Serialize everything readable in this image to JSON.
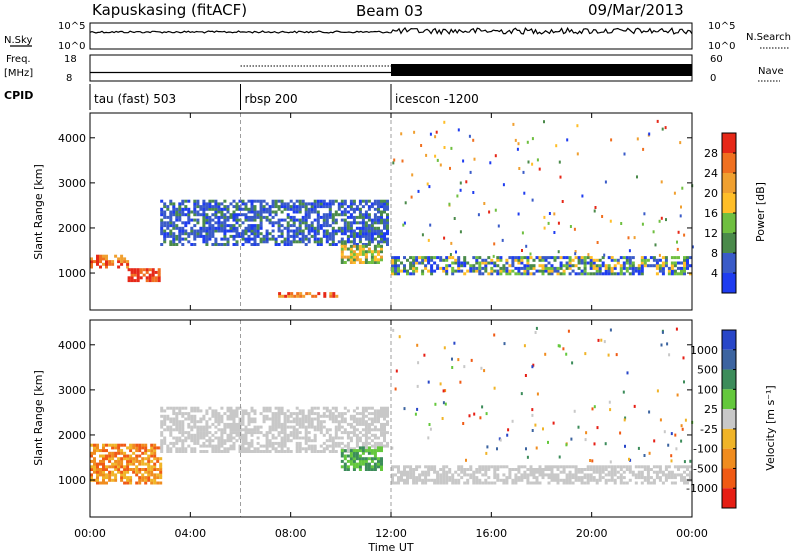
{
  "header": {
    "site_title": "Kapuskasing (fitACF)",
    "beam": "Beam 03",
    "date": "09/Mar/2013"
  },
  "top_panels": {
    "nsky_label": "N.Sky",
    "nsky_ticks": [
      "10^5",
      "10^0"
    ],
    "nsearch_label": "N.Search",
    "nsearch_ticks": [
      "10^5",
      "10^0"
    ],
    "freq_label_1": "Freq.",
    "freq_label_2": "[MHz]",
    "freq_ticks": [
      "18",
      "8"
    ],
    "nave_label": "Nave",
    "nave_ticks": [
      "60",
      "0"
    ],
    "cpid_label": "CPID",
    "cpid_segments": [
      {
        "label": "tau (fast) 503",
        "start": 0
      },
      {
        "label": "rbsp 200",
        "start": 6
      },
      {
        "label": "icescon -1200",
        "start": 12
      }
    ]
  },
  "chart_data": [
    {
      "type": "heatmap",
      "name": "power",
      "ylabel": "Slant Range [km]",
      "ylim": [
        180,
        4550
      ],
      "yticks": [
        1000,
        2000,
        3000,
        4000
      ],
      "xlim": [
        0,
        24
      ],
      "colorbar": {
        "label": "Power [dB]",
        "tick_labels": [
          "4",
          "8",
          "12",
          "16",
          "20",
          "24",
          "28"
        ],
        "colors": [
          "#1e3cf0",
          "#3a5bc8",
          "#4a8a4a",
          "#6fbf40",
          "#ffbe28",
          "#f0a030",
          "#f07020",
          "#e62818"
        ]
      },
      "features": [
        {
          "x0": 0.0,
          "x1": 1.5,
          "r0": 1100,
          "r1": 1400,
          "level": "high"
        },
        {
          "x0": 1.5,
          "x1": 2.8,
          "r0": 800,
          "r1": 1100,
          "level": "very high"
        },
        {
          "x0": 2.8,
          "x1": 11.8,
          "r0": 1600,
          "r1": 2600,
          "level": "low"
        },
        {
          "x0": 7.5,
          "x1": 9.8,
          "r0": 450,
          "r1": 550,
          "level": "high"
        },
        {
          "x0": 10.0,
          "x1": 11.6,
          "r0": 1200,
          "r1": 1600,
          "level": "mid"
        },
        {
          "x0": 12.0,
          "x1": 24.0,
          "r0": 950,
          "r1": 1350,
          "level": "mixed"
        }
      ]
    },
    {
      "type": "heatmap",
      "name": "velocity",
      "ylabel": "Slant Range [km]",
      "ylim": [
        180,
        4550
      ],
      "yticks": [
        1000,
        2000,
        3000,
        4000
      ],
      "xlim": [
        0,
        24
      ],
      "xlabel": "Time UT",
      "xtick_labels": [
        "00:00",
        "04:00",
        "08:00",
        "12:00",
        "16:00",
        "20:00",
        "00:00"
      ],
      "colorbar": {
        "label": "Velocity [m s⁻¹]",
        "tick_labels": [
          "1000",
          "500",
          "100",
          "25",
          "-25",
          "-100",
          "-500",
          "-1000"
        ],
        "colors": [
          "#2846c8",
          "#3c64a0",
          "#3c8c5a",
          "#64c83c",
          "#c8c8c8",
          "#f0b428",
          "#f08c1e",
          "#f05a14",
          "#e61e14"
        ]
      },
      "features": [
        {
          "x0": 0.0,
          "x1": 2.8,
          "r0": 900,
          "r1": 1800,
          "level": "negative"
        },
        {
          "x0": 2.8,
          "x1": 11.8,
          "r0": 1600,
          "r1": 2600,
          "level": "ground"
        },
        {
          "x0": 10.0,
          "x1": 11.6,
          "r0": 1200,
          "r1": 1700,
          "level": "positive"
        },
        {
          "x0": 12.0,
          "x1": 24.0,
          "r0": 900,
          "r1": 1300,
          "level": "ground"
        }
      ]
    }
  ]
}
